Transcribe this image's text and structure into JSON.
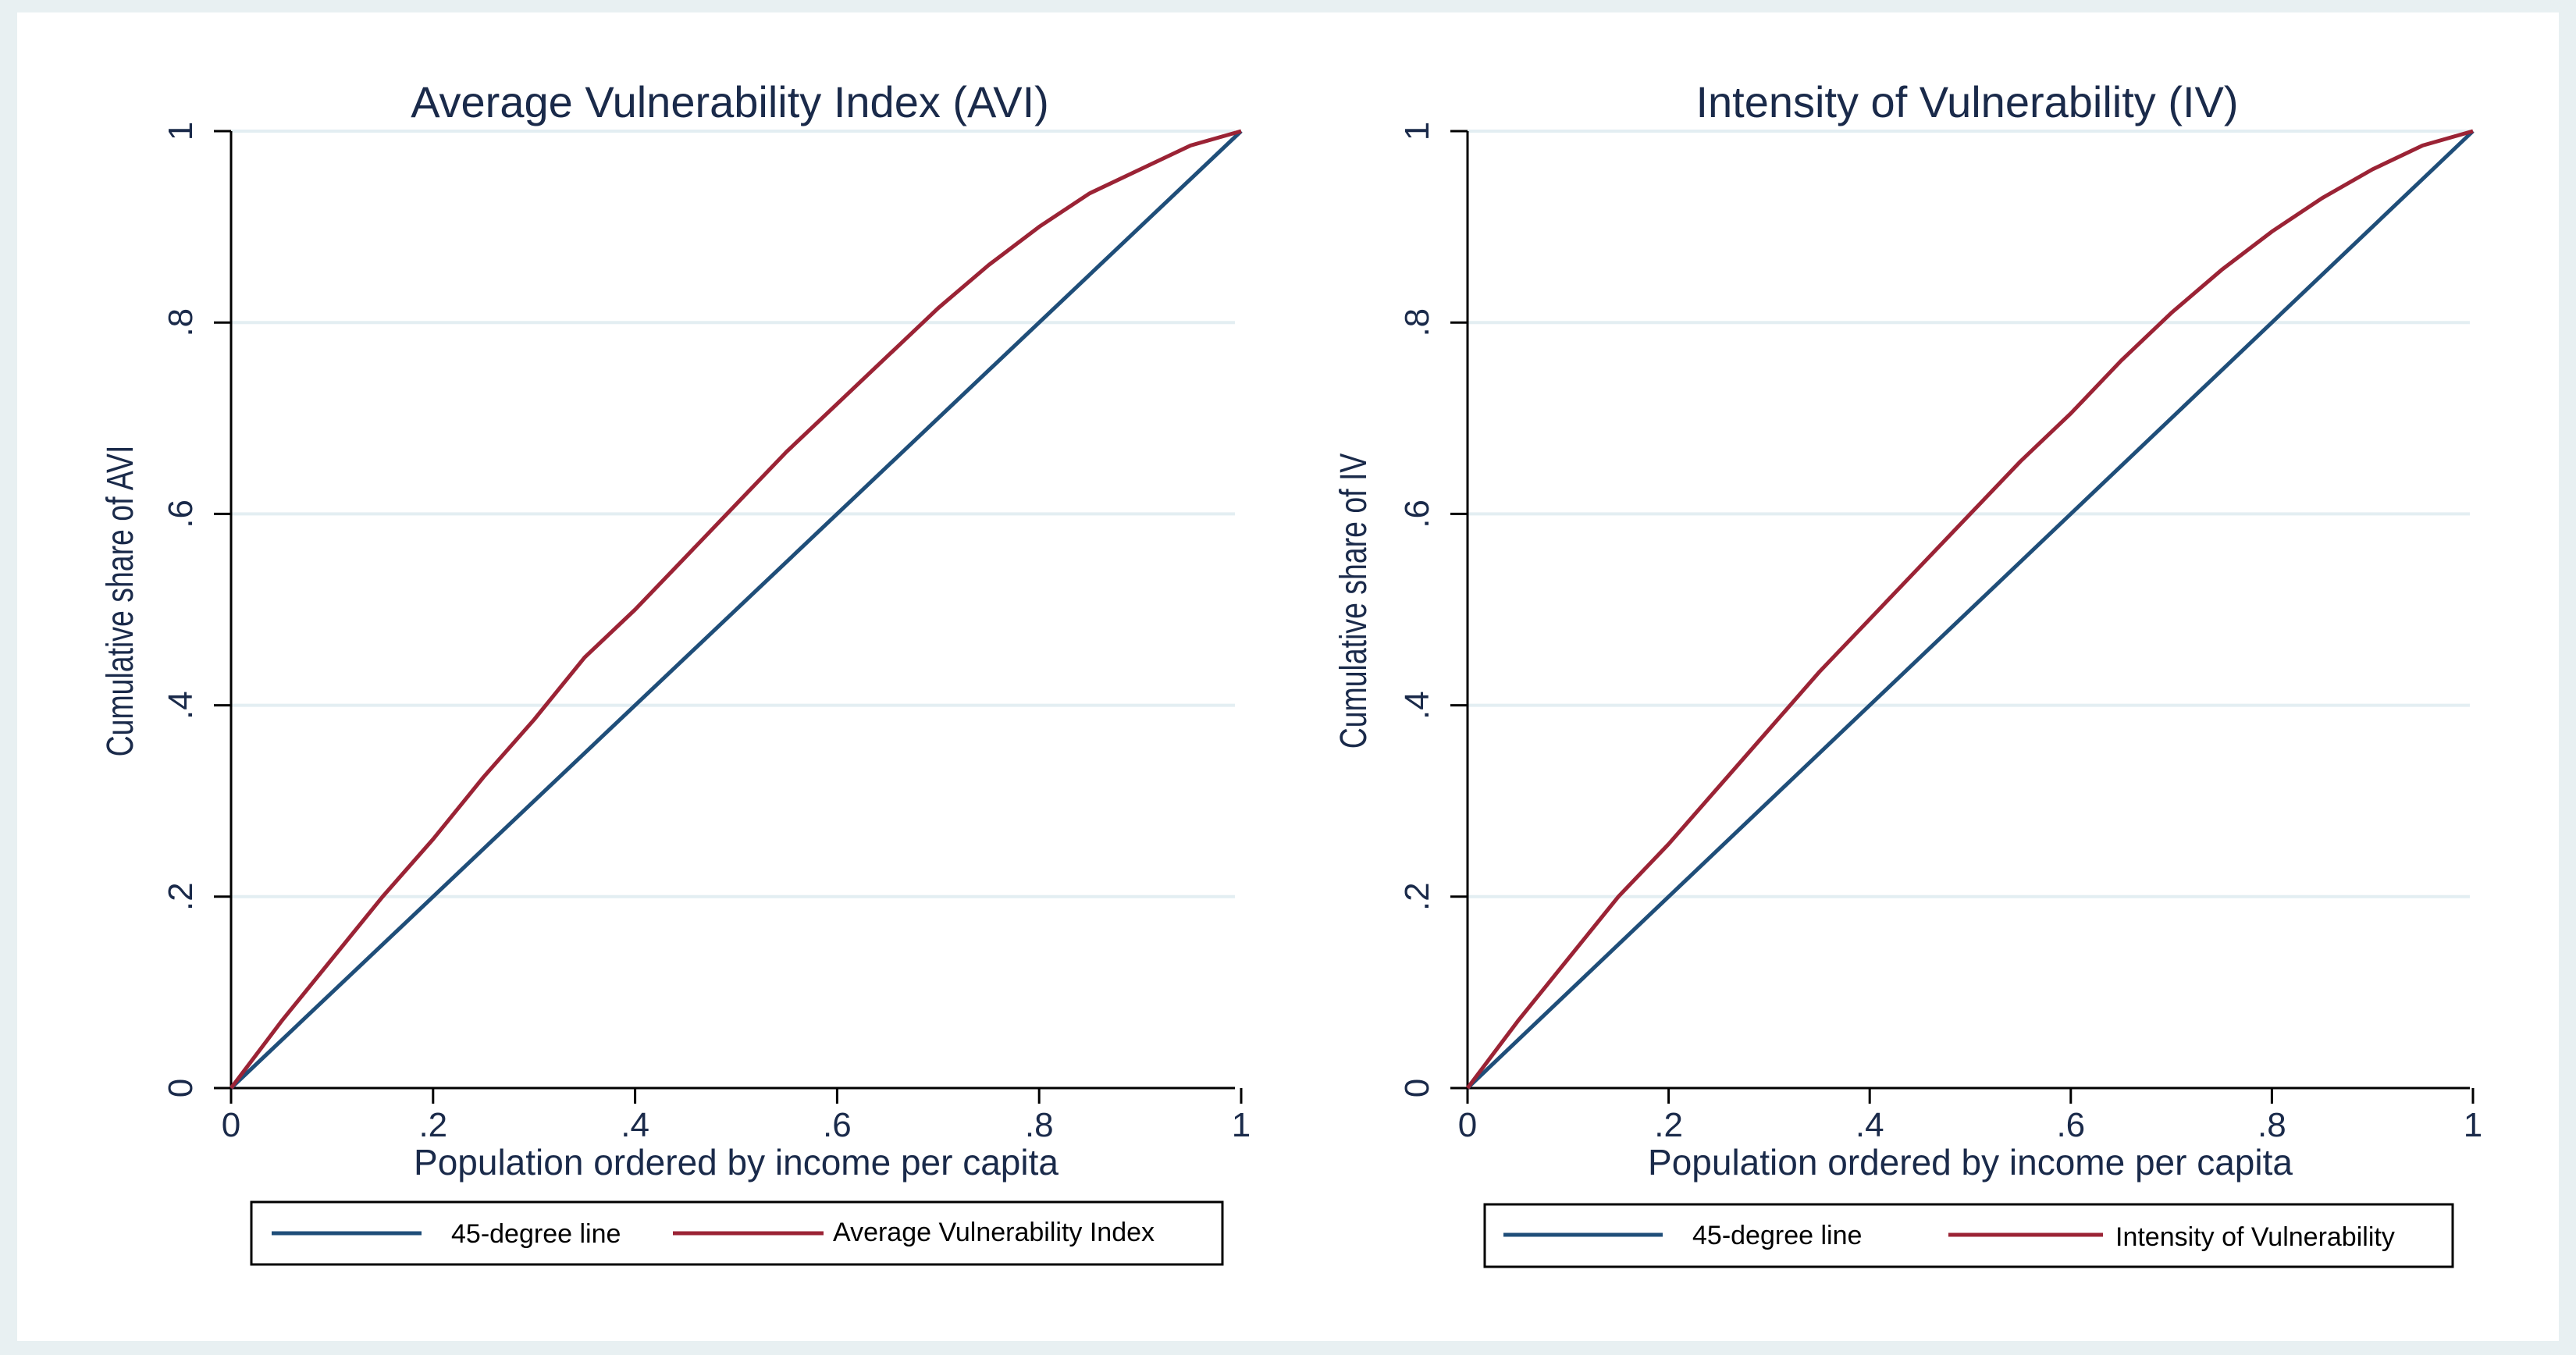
{
  "chart_data": [
    {
      "type": "line",
      "title": "Average Vulnerability Index (AVI)",
      "xlabel": "Population ordered by income per capita",
      "ylabel": "Cumulative share of AVI",
      "xlim": [
        0,
        1
      ],
      "ylim": [
        0,
        1
      ],
      "x_ticks": [
        "0",
        ".2",
        ".4",
        ".6",
        ".8",
        "1"
      ],
      "y_ticks": [
        "0",
        ".2",
        ".4",
        ".6",
        ".8",
        "1"
      ],
      "legend_position": "bottom",
      "series": [
        {
          "name": "45-degree line",
          "color": "#1f4e79",
          "x": [
            0,
            1
          ],
          "y": [
            0,
            1
          ]
        },
        {
          "name": "Average Vulnerability Index",
          "color": "#9b2335",
          "x": [
            0,
            0.05,
            0.1,
            0.15,
            0.2,
            0.25,
            0.3,
            0.35,
            0.4,
            0.45,
            0.5,
            0.55,
            0.6,
            0.65,
            0.7,
            0.75,
            0.8,
            0.85,
            0.9,
            0.95,
            1.0
          ],
          "y": [
            0,
            0.07,
            0.135,
            0.2,
            0.26,
            0.325,
            0.385,
            0.45,
            0.5,
            0.555,
            0.61,
            0.665,
            0.715,
            0.765,
            0.815,
            0.86,
            0.9,
            0.935,
            0.96,
            0.985,
            1.0
          ]
        }
      ]
    },
    {
      "type": "line",
      "title": "Intensity of Vulnerability (IV)",
      "xlabel": "Population ordered by income per capita",
      "ylabel": "Cumulative share of IV",
      "xlim": [
        0,
        1
      ],
      "ylim": [
        0,
        1
      ],
      "x_ticks": [
        "0",
        ".2",
        ".4",
        ".6",
        ".8",
        "1"
      ],
      "y_ticks": [
        "0",
        ".2",
        ".4",
        ".6",
        ".8",
        "1"
      ],
      "legend_position": "bottom",
      "series": [
        {
          "name": "45-degree line",
          "color": "#1f4e79",
          "x": [
            0,
            1
          ],
          "y": [
            0,
            1
          ]
        },
        {
          "name": "Intensity of Vulnerability",
          "color": "#9b2335",
          "x": [
            0,
            0.05,
            0.1,
            0.15,
            0.2,
            0.25,
            0.3,
            0.35,
            0.4,
            0.45,
            0.5,
            0.55,
            0.6,
            0.65,
            0.7,
            0.75,
            0.8,
            0.85,
            0.9,
            0.95,
            1.0
          ],
          "y": [
            0,
            0.07,
            0.135,
            0.2,
            0.255,
            0.315,
            0.375,
            0.435,
            0.49,
            0.545,
            0.6,
            0.655,
            0.705,
            0.76,
            0.81,
            0.855,
            0.895,
            0.93,
            0.96,
            0.985,
            1.0
          ]
        }
      ]
    }
  ],
  "colors": {
    "outer_background": "#e8f0f2",
    "plot_background": "#ffffff",
    "gridline": "#e3eef2",
    "axis": "#000000"
  }
}
